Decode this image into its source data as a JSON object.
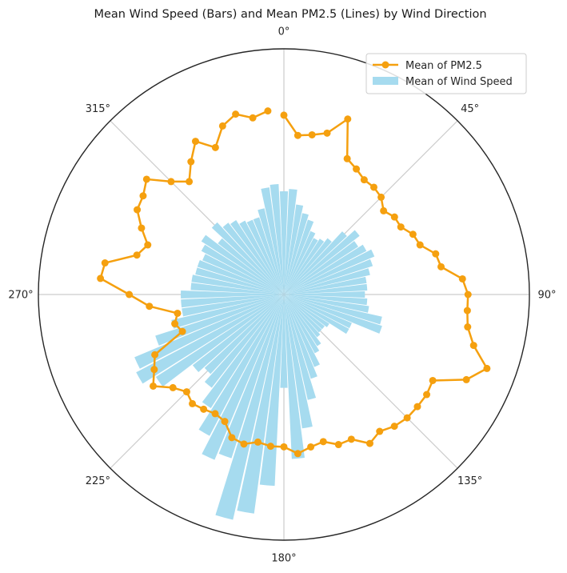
{
  "chart_data": {
    "type": "polar-bar-line",
    "title": "Mean Wind Speed (Bars) and Mean PM2.5 (Lines) by Wind Direction",
    "theta_ticks": [
      "0°",
      "45°",
      "90°",
      "135°",
      "180°",
      "225°",
      "270°",
      "315°"
    ],
    "theta_tick_degrees": [
      0,
      45,
      90,
      135,
      180,
      225,
      270,
      315
    ],
    "direction": "clockwise",
    "zero_location": "top",
    "radial_grid": false,
    "angular_grid": true,
    "legend": {
      "position": "top-right",
      "entries": [
        {
          "label": "Mean of PM2.5",
          "type": "line-marker",
          "color": "#f5a00f"
        },
        {
          "label": "Mean of Wind Speed",
          "type": "bar",
          "color": "#a6dbef"
        }
      ]
    },
    "bar_color": "#a6dbef",
    "line_color": "#f5a00f",
    "directions": [
      0,
      5,
      10,
      15,
      20,
      25,
      30,
      35,
      40,
      45,
      50,
      55,
      60,
      65,
      70,
      75,
      80,
      85,
      90,
      95,
      100,
      105,
      110,
      115,
      120,
      125,
      130,
      135,
      140,
      145,
      150,
      155,
      160,
      165,
      170,
      175,
      180,
      185,
      190,
      195,
      200,
      205,
      210,
      215,
      220,
      225,
      230,
      235,
      240,
      245,
      250,
      255,
      260,
      265,
      270,
      275,
      280,
      285,
      290,
      295,
      300,
      305,
      310,
      315,
      320,
      325,
      330,
      335,
      340,
      345,
      350,
      355
    ],
    "series": [
      {
        "name": "Mean of Wind Speed",
        "type": "bar",
        "values": [
          0.42,
          0.43,
          0.37,
          0.34,
          0.32,
          0.28,
          0.26,
          0.27,
          0.29,
          0.35,
          0.39,
          0.36,
          0.38,
          0.4,
          0.38,
          0.36,
          0.34,
          0.34,
          0.33,
          0.34,
          0.35,
          0.41,
          0.42,
          0.3,
          0.3,
          0.22,
          0.21,
          0.21,
          0.22,
          0.25,
          0.27,
          0.32,
          0.36,
          0.44,
          0.55,
          0.67,
          0.38,
          0.78,
          0.9,
          0.94,
          0.7,
          0.73,
          0.65,
          0.55,
          0.48,
          0.44,
          0.47,
          0.62,
          0.68,
          0.66,
          0.55,
          0.47,
          0.42,
          0.42,
          0.42,
          0.38,
          0.38,
          0.37,
          0.37,
          0.36,
          0.38,
          0.4,
          0.34,
          0.4,
          0.37,
          0.36,
          0.34,
          0.33,
          0.33,
          0.36,
          0.44,
          0.45
        ]
      },
      {
        "name": "Mean of PM2.5",
        "type": "line",
        "values": [
          0.73,
          0.65,
          0.66,
          0.68,
          0.76,
          0.61,
          0.59,
          0.57,
          0.57,
          0.56,
          0.53,
          0.55,
          0.55,
          0.58,
          0.59,
          0.64,
          0.65,
          0.73,
          0.75,
          0.75,
          0.76,
          0.8,
          0.88,
          0.82,
          0.7,
          0.71,
          0.71,
          0.71,
          0.7,
          0.68,
          0.7,
          0.65,
          0.65,
          0.62,
          0.63,
          0.65,
          0.62,
          0.62,
          0.61,
          0.63,
          0.62,
          0.57,
          0.56,
          0.57,
          0.58,
          0.56,
          0.59,
          0.65,
          0.61,
          0.58,
          0.44,
          0.46,
          0.44,
          0.55,
          0.63,
          0.75,
          0.74,
          0.62,
          0.59,
          0.64,
          0.69,
          0.7,
          0.73,
          0.65,
          0.6,
          0.66,
          0.72,
          0.66,
          0.73,
          0.76,
          0.73,
          0.75
        ]
      }
    ]
  }
}
